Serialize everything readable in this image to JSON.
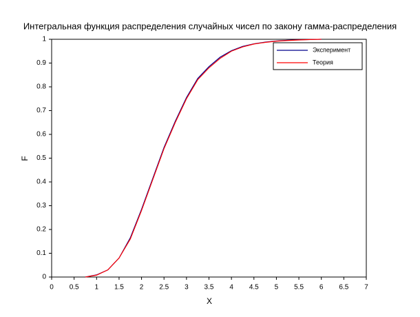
{
  "chart_data": {
    "type": "line",
    "title": "Интегральная функция распределения случайных чисел по закону гамма-распределения",
    "x_label": "X",
    "y_label": "F",
    "x": [
      0.75,
      1.0,
      1.25,
      1.5,
      1.75,
      2.0,
      2.25,
      2.5,
      2.75,
      3.0,
      3.25,
      3.5,
      3.75,
      4.0,
      4.25,
      4.5,
      4.75,
      5.0,
      5.25,
      5.5,
      5.75,
      6.0
    ],
    "series": [
      {
        "name": "Эксперимент",
        "color": "#00008b",
        "values": [
          0,
          0.009,
          0.03,
          0.08,
          0.165,
          0.285,
          0.415,
          0.545,
          0.655,
          0.755,
          0.835,
          0.885,
          0.925,
          0.952,
          0.97,
          0.981,
          0.988,
          0.993,
          0.996,
          0.998,
          0.999,
          1.0
        ]
      },
      {
        "name": "Теория",
        "color": "#ff0000",
        "values": [
          0,
          0.008,
          0.03,
          0.08,
          0.16,
          0.28,
          0.41,
          0.54,
          0.65,
          0.75,
          0.83,
          0.88,
          0.92,
          0.95,
          0.968,
          0.98,
          0.987,
          0.992,
          0.995,
          0.997,
          0.999,
          1.0
        ]
      }
    ],
    "xlim": [
      0,
      7
    ],
    "xticks": [
      0,
      0.5,
      1,
      1.5,
      2,
      2.5,
      3,
      3.5,
      4,
      4.5,
      5,
      5.5,
      6,
      6.5,
      7
    ],
    "ylim": [
      0,
      1
    ],
    "yticks": [
      0,
      0.1,
      0.2,
      0.3,
      0.4,
      0.5,
      0.6,
      0.7,
      0.8,
      0.9,
      1
    ],
    "grid": false,
    "legend": "upper-right"
  }
}
